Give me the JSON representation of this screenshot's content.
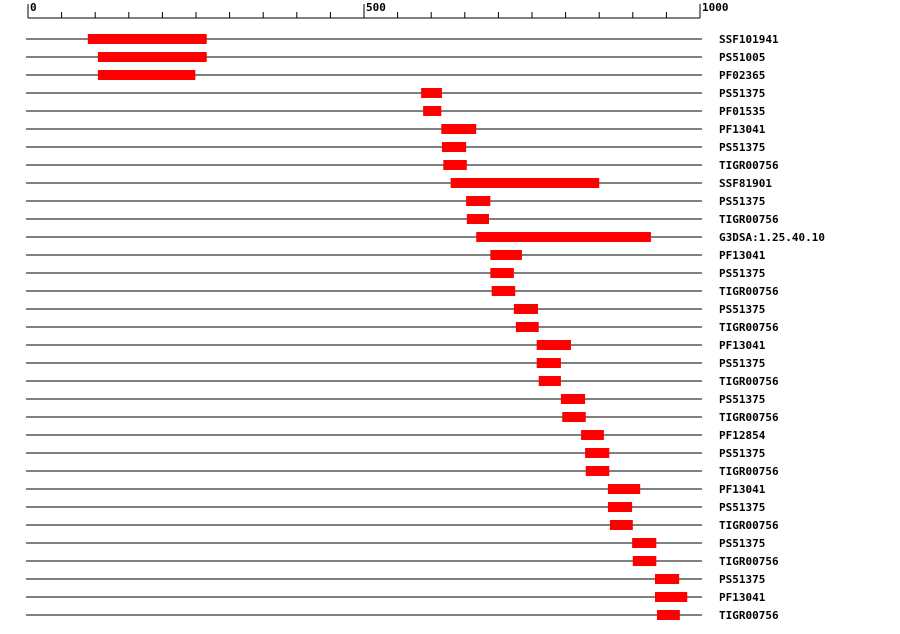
{
  "chart_data": {
    "type": "range",
    "color": "#ff0000",
    "xlim": [
      0,
      1000
    ],
    "xticks": [
      0,
      500,
      1000
    ],
    "xminor_ticks": [
      0,
      50,
      100,
      150,
      200,
      250,
      300,
      350,
      400,
      450,
      500,
      550,
      600,
      650,
      700,
      750,
      800,
      850,
      900,
      950,
      1000
    ],
    "rows": [
      {
        "label": "SSF101941",
        "start": 89,
        "end": 266
      },
      {
        "label": "PS51005",
        "start": 104,
        "end": 266
      },
      {
        "label": "PF02365",
        "start": 104,
        "end": 249
      },
      {
        "label": "PS51375",
        "start": 585,
        "end": 616
      },
      {
        "label": "PF01535",
        "start": 588,
        "end": 615
      },
      {
        "label": "PF13041",
        "start": 615,
        "end": 667
      },
      {
        "label": "PS51375",
        "start": 616,
        "end": 652
      },
      {
        "label": "TIGR00756",
        "start": 618,
        "end": 653
      },
      {
        "label": "SSF81901",
        "start": 629,
        "end": 850
      },
      {
        "label": "PS51375",
        "start": 652,
        "end": 688
      },
      {
        "label": "TIGR00756",
        "start": 653,
        "end": 686
      },
      {
        "label": "G3DSA:1.25.40.10",
        "start": 667,
        "end": 927
      },
      {
        "label": "PF13041",
        "start": 688,
        "end": 735
      },
      {
        "label": "PS51375",
        "start": 688,
        "end": 723
      },
      {
        "label": "TIGR00756",
        "start": 690,
        "end": 725
      },
      {
        "label": "PS51375",
        "start": 723,
        "end": 759
      },
      {
        "label": "TIGR00756",
        "start": 726,
        "end": 760
      },
      {
        "label": "PF13041",
        "start": 757,
        "end": 808
      },
      {
        "label": "PS51375",
        "start": 757,
        "end": 793
      },
      {
        "label": "TIGR00756",
        "start": 760,
        "end": 793
      },
      {
        "label": "PS51375",
        "start": 793,
        "end": 829
      },
      {
        "label": "TIGR00756",
        "start": 795,
        "end": 830
      },
      {
        "label": "PF12854",
        "start": 823,
        "end": 857
      },
      {
        "label": "PS51375",
        "start": 829,
        "end": 865
      },
      {
        "label": "TIGR00756",
        "start": 830,
        "end": 865
      },
      {
        "label": "PF13041",
        "start": 863,
        "end": 911
      },
      {
        "label": "PS51375",
        "start": 863,
        "end": 899
      },
      {
        "label": "TIGR00756",
        "start": 866,
        "end": 900
      },
      {
        "label": "PS51375",
        "start": 899,
        "end": 935
      },
      {
        "label": "TIGR00756",
        "start": 900,
        "end": 935
      },
      {
        "label": "PS51375",
        "start": 933,
        "end": 969
      },
      {
        "label": "PF13041",
        "start": 933,
        "end": 981
      },
      {
        "label": "TIGR00756",
        "start": 936,
        "end": 970
      }
    ]
  }
}
